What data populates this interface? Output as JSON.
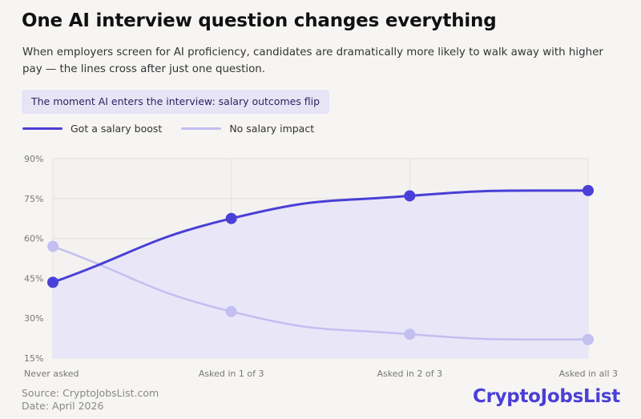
{
  "header": {
    "title": "One AI interview question changes everything",
    "subtitle": "When employers screen for AI proficiency, candidates are dramatically more likely to walk away with higher pay — the lines cross after just one question.",
    "callout": "The moment AI enters the interview: salary outcomes flip"
  },
  "legend": {
    "boost": "Got a salary boost",
    "none": "No salary impact"
  },
  "footer": {
    "source": "Source: CryptoJobsList.com",
    "date": "Date: April 2026",
    "brand": "CryptoJobsList"
  },
  "chart_data": {
    "type": "line",
    "categories": [
      "Never asked",
      "Asked in 1 of 3",
      "Asked in 2 of 3",
      "Asked in all 3"
    ],
    "y_ticks": [
      15,
      30,
      45,
      60,
      75,
      90
    ],
    "y_tick_labels": [
      "15%",
      "30%",
      "45%",
      "60%",
      "75%",
      "90%"
    ],
    "ylim": [
      15,
      90
    ],
    "grid": true,
    "legend_position": "top-left",
    "series": [
      {
        "name": "Got a salary boost",
        "values": [
          43.5,
          67.5,
          76,
          78
        ],
        "color": "#4a3fd6",
        "area_fill": "#e9e6f8"
      },
      {
        "name": "No salary impact",
        "values": [
          57,
          32.5,
          24,
          22
        ],
        "color": "#c3bff1"
      }
    ]
  }
}
